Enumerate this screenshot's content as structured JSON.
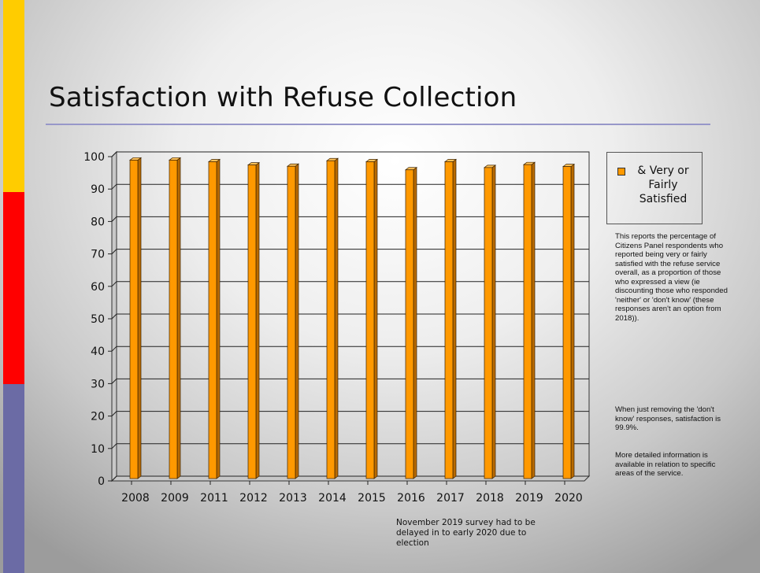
{
  "slide": {
    "title": "Satisfaction with Refuse Collection",
    "stripe_colors": [
      "#ffcc00",
      "#ff0000",
      "#6b6ba5"
    ],
    "notes": [
      "This reports the percentage of Citizens Panel respondents who reported being very or fairly satisfied with the refuse service overall, as a proportion of those who expressed a view (ie discounting those who responded 'neither' or 'don't know' (these responses aren't an option from 2018)).",
      "When just removing the 'don't know' responses, satisfaction is 99.9%.",
      "More detailed information is available in relation to specific areas of the service."
    ],
    "footnote": "November 2019 survey had to be delayed in to early 2020 due to election"
  },
  "chart_data": {
    "type": "bar",
    "categories": [
      "2008",
      "2009",
      "2011",
      "2012",
      "2013",
      "2014",
      "2015",
      "2016",
      "2017",
      "2018",
      "2019",
      "2020"
    ],
    "series": [
      {
        "name": "& Very or Fairly Satisfied",
        "color": "#ff9900",
        "values": [
          98.2,
          98.2,
          97.7,
          96.7,
          96.3,
          98.0,
          97.7,
          95.2,
          97.7,
          95.9,
          96.8,
          96.2
        ]
      }
    ],
    "ylim": [
      0,
      100
    ],
    "yticks": [
      "0",
      "10",
      "20",
      "30",
      "40",
      "50",
      "60",
      "70",
      "80",
      "90",
      "100"
    ],
    "grid": true,
    "legend_position": "right",
    "title": "",
    "xlabel": "",
    "ylabel": ""
  }
}
